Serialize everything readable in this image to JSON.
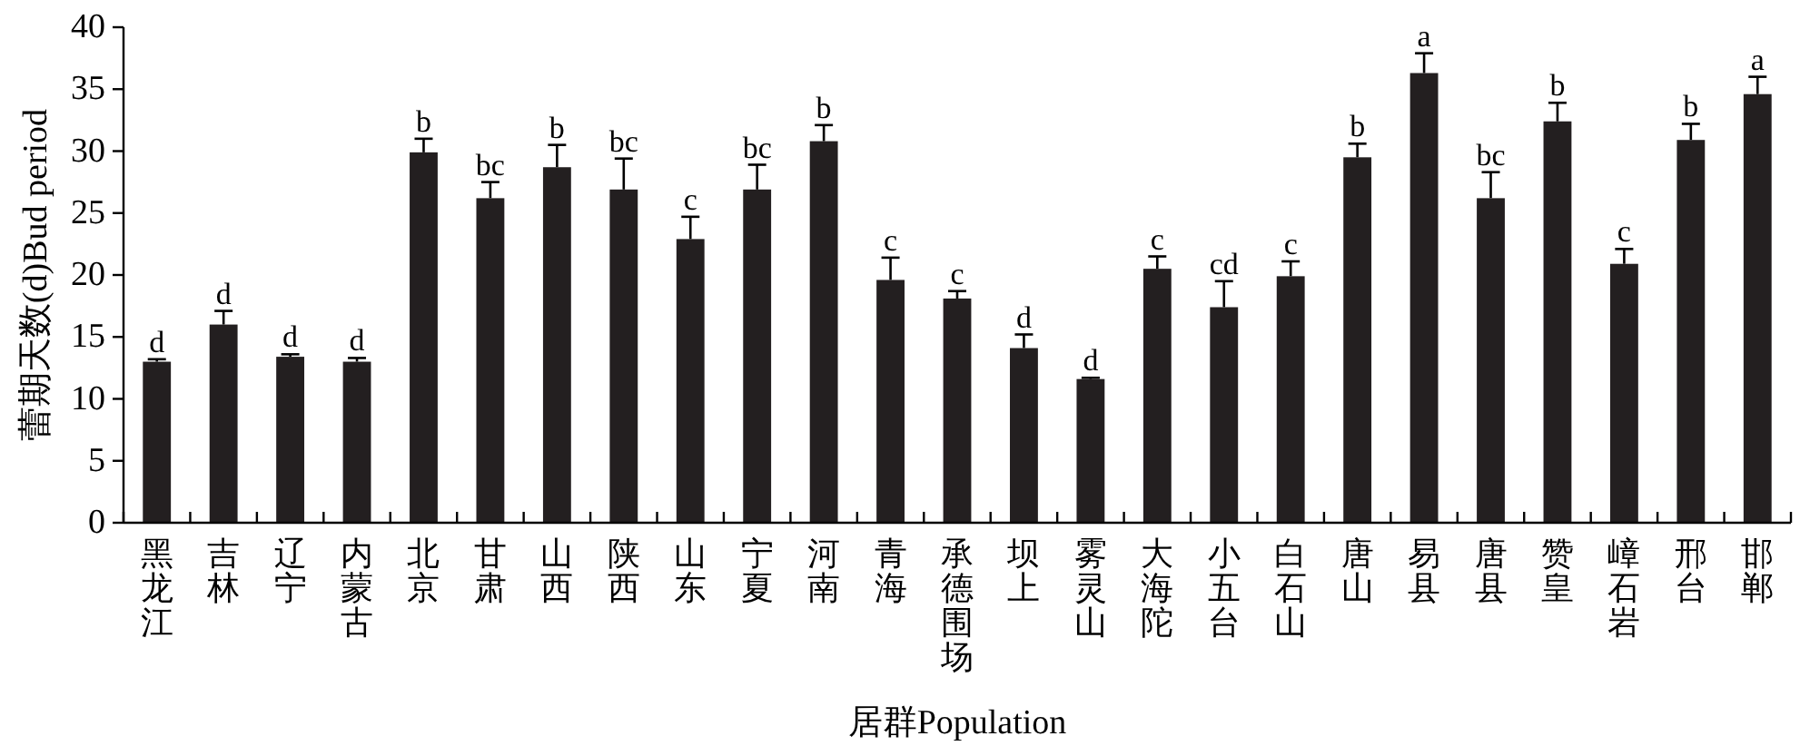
{
  "chart_data": {
    "type": "bar",
    "xlabel": "居群Population",
    "ylabel": "蕾期天数(d)Bud period",
    "categories": [
      "黑龙江",
      "吉林",
      "辽宁",
      "内蒙古",
      "北京",
      "甘肃",
      "山西",
      "陕西",
      "山东",
      "宁夏",
      "河南",
      "青海",
      "承德围场",
      "坝上",
      "雾灵山",
      "大海陀",
      "小五台",
      "白石山",
      "唐山",
      "易县",
      "唐县",
      "赞皇",
      "嶂石岩",
      "邢台",
      "邯郸"
    ],
    "values": [
      13,
      16,
      13.4,
      13,
      29.9,
      26.2,
      28.7,
      26.9,
      22.9,
      26.9,
      30.8,
      19.6,
      18.1,
      14.1,
      11.6,
      20.5,
      17.4,
      19.9,
      29.5,
      36.3,
      26.2,
      32.4,
      20.9,
      30.9,
      34.6
    ],
    "errors": [
      0.2,
      1.1,
      0.2,
      0.3,
      1.1,
      1.3,
      1.8,
      2.5,
      1.8,
      2,
      1.3,
      1.8,
      0.6,
      1.1,
      0.1,
      1,
      2.1,
      1.2,
      1.1,
      1.6,
      2.1,
      1.5,
      1.2,
      1.3,
      1.4
    ],
    "value_labels": [
      "d",
      "d",
      "d",
      "d",
      "b",
      "bc",
      "b",
      "bc",
      "c",
      "bc",
      "b",
      "c",
      "c",
      "d",
      "d",
      "c",
      "cd",
      "c",
      "b",
      "a",
      "bc",
      "b",
      "c",
      "b",
      "a"
    ],
    "color": "#231f20",
    "ylim": [
      0,
      40
    ],
    "yticks": [
      0,
      5,
      10,
      15,
      20,
      25,
      30,
      35,
      40
    ]
  }
}
